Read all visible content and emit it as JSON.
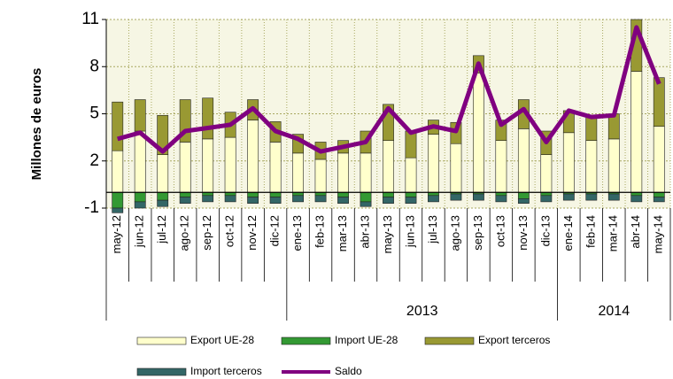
{
  "chart_data": {
    "type": "stacked-bar-line",
    "y_axis_label": "Millones de euros",
    "categories": [
      "may-12",
      "jun-12",
      "jul-12",
      "ago-12",
      "sep-12",
      "oct-12",
      "nov-12",
      "dic-12",
      "ene-13",
      "feb-13",
      "mar-13",
      "abr-13",
      "may-13",
      "jun-13",
      "jul-13",
      "ago-13",
      "sep-13",
      "oct-13",
      "nov-13",
      "dic-13",
      "ene-14",
      "feb-14",
      "mar-14",
      "abr-14",
      "may-14"
    ],
    "year_labels": [
      null,
      "2013",
      "2014"
    ],
    "series": [
      {
        "name": "Export UE-28",
        "kind": "bar",
        "color": "#ffffcc",
        "values": [
          2.65,
          3.9,
          2.4,
          3.2,
          3.4,
          3.5,
          4.6,
          3.2,
          2.5,
          2.1,
          2.5,
          2.5,
          3.3,
          2.2,
          3.7,
          3.1,
          7.6,
          3.3,
          4.05,
          2.4,
          3.8,
          3.3,
          3.4,
          7.7,
          4.2
        ]
      },
      {
        "name": "Import UE-28",
        "kind": "bar",
        "color": "#339933",
        "values": [
          -1.0,
          -0.6,
          -0.5,
          -0.3,
          -0.2,
          -0.2,
          -0.3,
          -0.3,
          -0.2,
          -0.2,
          -0.3,
          -0.6,
          -0.3,
          -0.3,
          -0.2,
          -0.1,
          -0.1,
          -0.2,
          -0.4,
          -0.2,
          -0.1,
          -0.1,
          -0.1,
          -0.2,
          -0.3
        ]
      },
      {
        "name": "Export terceros",
        "kind": "bar",
        "color": "#999933",
        "values": [
          3.1,
          2.0,
          2.5,
          2.7,
          2.6,
          1.6,
          1.3,
          1.3,
          1.2,
          1.1,
          0.8,
          1.4,
          2.3,
          1.7,
          0.9,
          1.35,
          1.1,
          1.3,
          1.85,
          1.5,
          1.4,
          1.6,
          1.6,
          3.3,
          3.1
        ]
      },
      {
        "name": "Import terceros",
        "kind": "bar",
        "color": "#336666",
        "values": [
          -0.3,
          -0.4,
          -0.4,
          -0.4,
          -0.4,
          -0.4,
          -0.4,
          -0.4,
          -0.4,
          -0.4,
          -0.4,
          -0.3,
          -0.4,
          -0.4,
          -0.4,
          -0.4,
          -0.4,
          -0.4,
          -0.3,
          -0.4,
          -0.4,
          -0.4,
          -0.4,
          -0.4,
          -0.3
        ]
      },
      {
        "name": "Saldo",
        "kind": "line",
        "color": "#800080",
        "values": [
          3.4,
          3.8,
          2.6,
          3.9,
          4.1,
          4.3,
          5.35,
          3.9,
          3.4,
          2.6,
          2.9,
          3.2,
          5.35,
          3.8,
          4.2,
          3.9,
          8.2,
          4.3,
          5.3,
          3.2,
          5.2,
          4.8,
          4.9,
          10.5,
          6.9
        ]
      }
    ],
    "ylim": [
      -1,
      11
    ],
    "yticks": [
      -1,
      2,
      5,
      8,
      11
    ],
    "grid": true
  }
}
